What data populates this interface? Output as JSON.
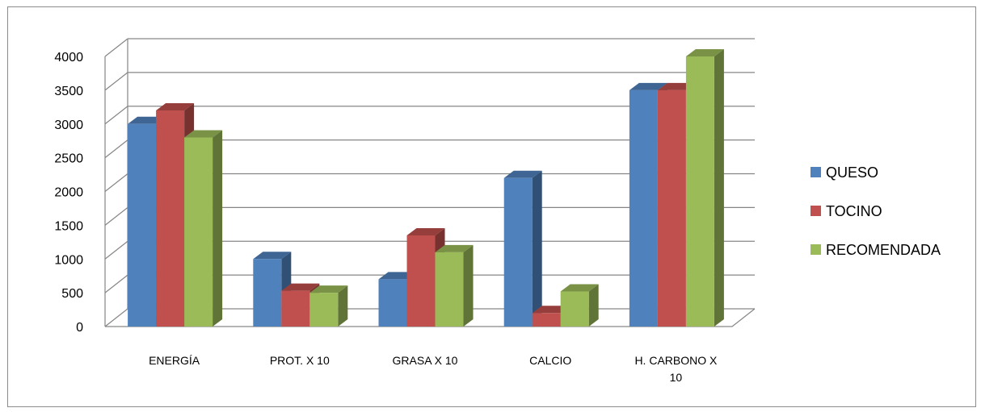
{
  "chart_data": {
    "type": "bar",
    "title": "",
    "xlabel": "",
    "ylabel": "",
    "categories": [
      "ENERGÍA",
      "PROT. X 10",
      "GRASA X 10",
      "CALCIO",
      "H. CARBONO X 10"
    ],
    "category_lines": [
      [
        "ENERGÍA"
      ],
      [
        "PROT. X 10"
      ],
      [
        "GRASA X 10"
      ],
      [
        "CALCIO"
      ],
      [
        "H. CARBONO X",
        "10"
      ]
    ],
    "series": [
      {
        "name": "QUESO",
        "color": "#4F81BD",
        "values": [
          3000,
          1000,
          700,
          2200,
          3500
        ]
      },
      {
        "name": "TOCINO",
        "color": "#C0504D",
        "values": [
          3200,
          530,
          1350,
          200,
          3500
        ]
      },
      {
        "name": "RECOMENDADA",
        "color": "#9BBB59",
        "values": [
          2800,
          500,
          1100,
          520,
          4000
        ]
      }
    ],
    "ylim": [
      0,
      4000
    ],
    "yticks": [
      "0",
      "500",
      "1000",
      "1500",
      "2000",
      "2500",
      "3000",
      "3500",
      "4000"
    ],
    "grid": true,
    "legend_position": "right",
    "style": "3d-clustered-column"
  }
}
